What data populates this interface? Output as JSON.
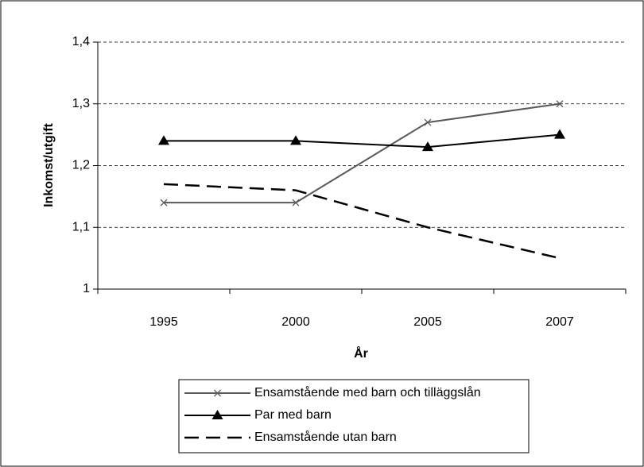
{
  "chart_data": {
    "type": "line",
    "x_label": "År",
    "y_label": "Inkomst/utgift",
    "categories": [
      "1995",
      "2000",
      "2005",
      "2007"
    ],
    "series": [
      {
        "name": "Ensamstående med barn och tilläggslån",
        "color": "#595959",
        "marker": "x",
        "linestyle": "solid",
        "values": [
          1.14,
          1.14,
          1.27,
          1.3
        ]
      },
      {
        "name": "Par med barn",
        "color": "#000000",
        "marker": "triangle",
        "linestyle": "solid",
        "values": [
          1.24,
          1.24,
          1.23,
          1.25
        ]
      },
      {
        "name": "Ensamstående utan barn",
        "color": "#000000",
        "marker": "none",
        "linestyle": "dashed",
        "values": [
          1.17,
          1.16,
          1.1,
          1.05
        ]
      }
    ],
    "ylim": [
      1,
      1.4
    ],
    "yticks": [
      1,
      {
        "value": 1.1,
        "label": "1,1"
      },
      {
        "value": 1.2,
        "label": "1,2"
      },
      {
        "value": 1.3,
        "label": "1,3"
      },
      {
        "value": 1.4,
        "label": "1,4"
      }
    ],
    "grid": true,
    "legend": "bottom"
  }
}
